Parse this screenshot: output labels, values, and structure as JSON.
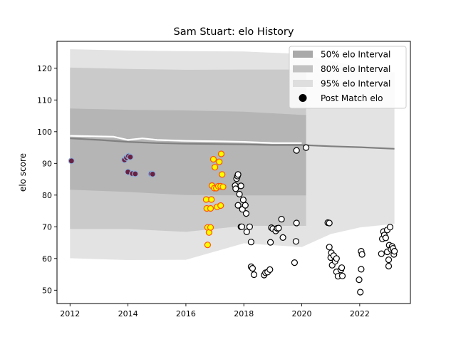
{
  "chart_data": {
    "type": "scatter",
    "title": "Sam Stuart: elo History",
    "xlabel": "",
    "ylabel": "elo score",
    "xlim": [
      2011.55,
      2023.75
    ],
    "ylim": [
      45.8,
      128.5
    ],
    "x_ticks": [
      2012,
      2014,
      2016,
      2018,
      2020,
      2022
    ],
    "y_ticks": [
      50,
      60,
      70,
      80,
      90,
      100,
      110,
      120
    ],
    "grid": false,
    "legend_position": "top-right",
    "legend": [
      {
        "label": "50% elo Interval",
        "kind": "patch",
        "color": "#a9a9a9"
      },
      {
        "label": "80% elo Interval",
        "kind": "patch",
        "color": "#c2c2c2"
      },
      {
        "label": "95% elo Interval",
        "kind": "patch",
        "color": "#dedede"
      },
      {
        "label": "Post Match elo",
        "kind": "marker",
        "color": "#000000"
      }
    ],
    "bands": [
      {
        "name": "95% elo Interval",
        "color": "#dedede",
        "x": [
          2012.0,
          2014.0,
          2016.0,
          2018.0,
          2020.0,
          2021.0,
          2022.0,
          2023.2
        ],
        "upper": [
          126,
          125.6,
          125.4,
          125.3,
          124.5,
          122.3,
          120.5,
          118.7
        ],
        "lower": [
          60.1,
          59.5,
          59.6,
          64.8,
          63.6,
          67.7,
          69.8,
          70.9
        ]
      },
      {
        "name": "80% elo Interval",
        "color": "#c6c6c6",
        "x": [
          2012.0,
          2014.0,
          2016.0,
          2018.0,
          2020.0,
          2020.15
        ],
        "upper": [
          120.2,
          119.8,
          119.5,
          119.6,
          119.6,
          119.6
        ],
        "lower": [
          69.3,
          69.3,
          68.4,
          70.3,
          70.3,
          70.3
        ]
      },
      {
        "name": "50% elo Interval",
        "color": "#b1b1b1",
        "x": [
          2012.0,
          2014.0,
          2016.0,
          2018.0,
          2020.0,
          2020.15
        ],
        "upper": [
          107.3,
          106.9,
          106.7,
          106.3,
          105.3,
          105.3
        ],
        "lower": [
          81.7,
          81.0,
          80.0,
          79.9,
          79.9,
          79.9
        ]
      }
    ],
    "mean_line": {
      "color": "#808080",
      "x": [
        2012.0,
        2013.0,
        2014.0,
        2015.0,
        2016.0,
        2017.0,
        2018.0,
        2019.0,
        2020.0,
        2021.0,
        2022.0,
        2023.2
      ],
      "y": [
        97.9,
        97.4,
        96.8,
        96.4,
        96.2,
        96.1,
        96.0,
        95.8,
        95.8,
        95.4,
        95.1,
        94.6
      ]
    },
    "white_line": {
      "color": "#ffffff",
      "x": [
        2012.0,
        2013.5,
        2014.0,
        2014.5,
        2015.0,
        2016.0,
        2017.0,
        2018.0,
        2019.0,
        2020.0
      ],
      "y": [
        98.7,
        98.4,
        97.4,
        97.9,
        97.4,
        97.1,
        97.0,
        96.8,
        96.4,
        96.4
      ]
    },
    "series": [
      {
        "name": "",
        "fill": "#6a2040",
        "edge": "#8fb0d8",
        "points": [
          [
            2012.05,
            90.8
          ],
          [
            2013.88,
            91.1
          ],
          [
            2013.95,
            91.8
          ],
          [
            2014.02,
            92.3
          ],
          [
            2014.08,
            92.0
          ],
          [
            2014.0,
            87.3
          ],
          [
            2014.15,
            86.8
          ],
          [
            2014.25,
            86.7
          ],
          [
            2014.8,
            86.7
          ],
          [
            2014.85,
            86.6
          ]
        ]
      },
      {
        "name": "",
        "fill": "#ffff00",
        "edge": "#ff5500",
        "points": [
          [
            2016.7,
            78.6
          ],
          [
            2016.72,
            75.8
          ],
          [
            2016.75,
            69.8
          ],
          [
            2016.75,
            64.3
          ],
          [
            2016.8,
            68.2
          ],
          [
            2016.85,
            69.8
          ],
          [
            2016.85,
            75.8
          ],
          [
            2016.88,
            78.6
          ],
          [
            2016.9,
            83.0
          ],
          [
            2016.95,
            91.3
          ],
          [
            2016.98,
            82.2
          ],
          [
            2017.0,
            88.8
          ],
          [
            2017.05,
            82.2
          ],
          [
            2017.08,
            76.3
          ],
          [
            2017.12,
            82.8
          ],
          [
            2017.15,
            90.5
          ],
          [
            2017.2,
            76.7
          ],
          [
            2017.2,
            82.8
          ],
          [
            2017.22,
            93.0
          ],
          [
            2017.25,
            86.5
          ],
          [
            2017.28,
            82.6
          ]
        ]
      },
      {
        "name": "Post Match elo",
        "fill": "#ffffff",
        "edge": "#000000",
        "points": [
          [
            2017.7,
            83.0
          ],
          [
            2017.72,
            82.0
          ],
          [
            2017.75,
            85.2
          ],
          [
            2017.78,
            86.0
          ],
          [
            2017.8,
            86.5
          ],
          [
            2017.8,
            76.8
          ],
          [
            2017.85,
            80.3
          ],
          [
            2017.9,
            82.9
          ],
          [
            2017.9,
            70.0
          ],
          [
            2017.93,
            70.0
          ],
          [
            2017.95,
            75.5
          ],
          [
            2017.98,
            78.5
          ],
          [
            2018.05,
            76.8
          ],
          [
            2018.08,
            74.2
          ],
          [
            2018.1,
            68.4
          ],
          [
            2018.2,
            70.0
          ],
          [
            2018.25,
            65.2
          ],
          [
            2018.25,
            57.4
          ],
          [
            2018.3,
            56.9
          ],
          [
            2018.35,
            54.9
          ],
          [
            2018.7,
            54.8
          ],
          [
            2018.75,
            55.5
          ],
          [
            2018.82,
            55.7
          ],
          [
            2018.9,
            56.5
          ],
          [
            2018.92,
            65.1
          ],
          [
            2018.95,
            69.7
          ],
          [
            2019.0,
            69.4
          ],
          [
            2019.1,
            68.7
          ],
          [
            2019.15,
            69.5
          ],
          [
            2019.2,
            69.6
          ],
          [
            2019.3,
            72.4
          ],
          [
            2019.35,
            66.6
          ],
          [
            2019.75,
            58.7
          ],
          [
            2019.8,
            65.4
          ],
          [
            2019.82,
            71.2
          ],
          [
            2019.82,
            94.1
          ],
          [
            2020.15,
            95.0
          ],
          [
            2020.9,
            71.3
          ],
          [
            2020.95,
            71.2
          ],
          [
            2020.95,
            63.6
          ],
          [
            2021.0,
            60.3
          ],
          [
            2021.02,
            61.8
          ],
          [
            2021.05,
            57.9
          ],
          [
            2021.1,
            60.9
          ],
          [
            2021.15,
            59.1
          ],
          [
            2021.2,
            60.0
          ],
          [
            2021.2,
            55.8
          ],
          [
            2021.25,
            54.4
          ],
          [
            2021.35,
            56.4
          ],
          [
            2021.38,
            57.1
          ],
          [
            2021.4,
            54.5
          ],
          [
            2021.98,
            53.3
          ],
          [
            2022.02,
            49.4
          ],
          [
            2022.05,
            56.6
          ],
          [
            2022.05,
            62.3
          ],
          [
            2022.08,
            61.3
          ],
          [
            2022.75,
            61.5
          ],
          [
            2022.78,
            66.2
          ],
          [
            2022.82,
            68.5
          ],
          [
            2022.85,
            67.4
          ],
          [
            2022.9,
            66.5
          ],
          [
            2022.95,
            69.0
          ],
          [
            2022.95,
            62.1
          ],
          [
            2023.0,
            59.6
          ],
          [
            2023.0,
            57.6
          ],
          [
            2023.02,
            64.2
          ],
          [
            2023.05,
            69.9
          ],
          [
            2023.08,
            62.9
          ],
          [
            2023.12,
            63.8
          ],
          [
            2023.15,
            63.2
          ],
          [
            2023.18,
            61.3
          ],
          [
            2023.2,
            62.3
          ]
        ]
      }
    ]
  }
}
